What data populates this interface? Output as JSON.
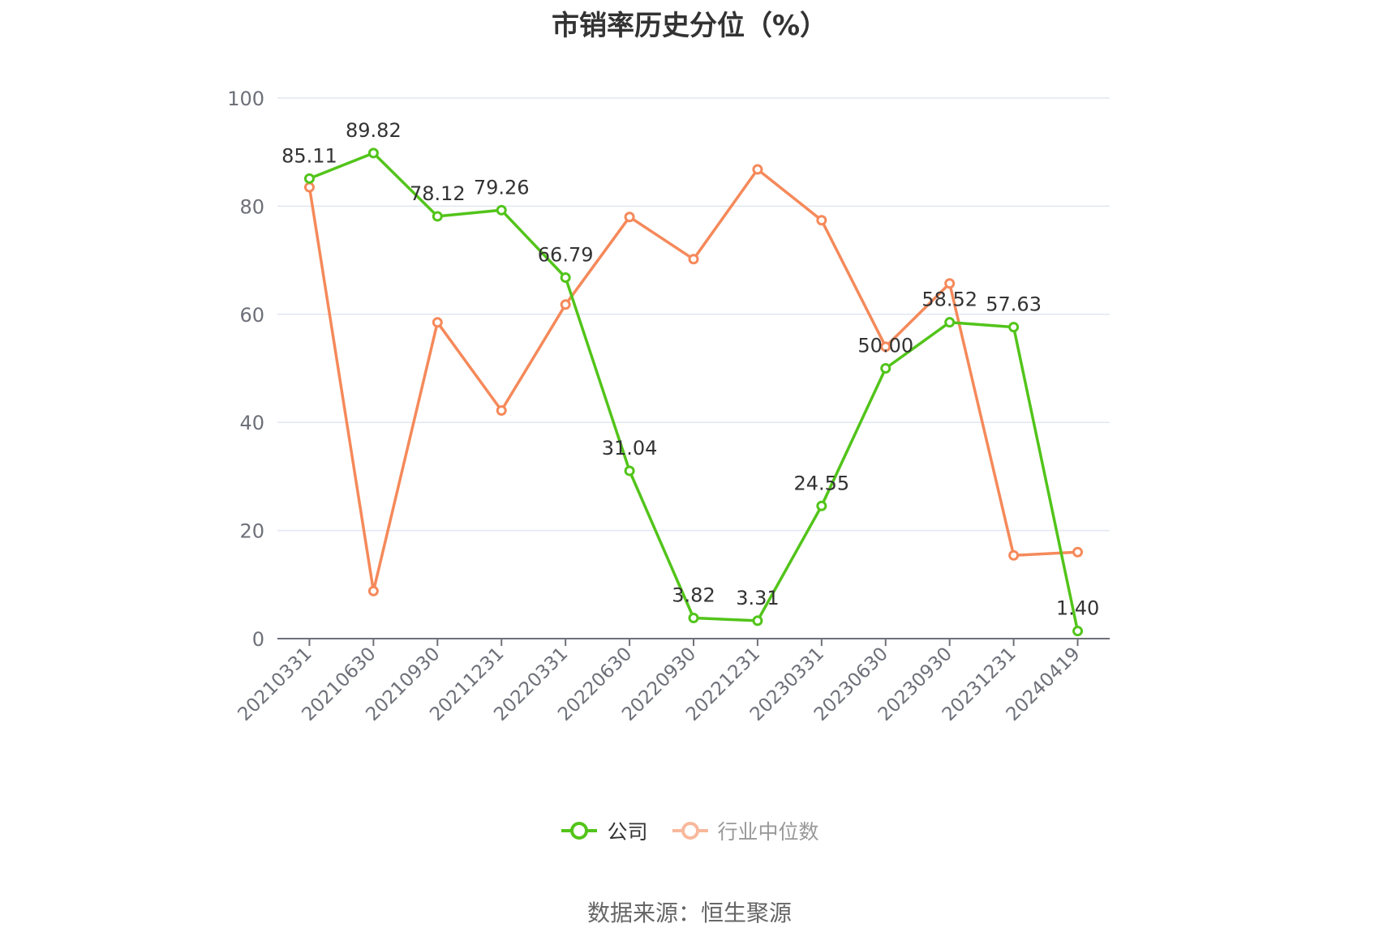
{
  "title": "市销率历史分位（%）",
  "source": "数据来源：恒生聚源",
  "chart_data": {
    "type": "line",
    "categories": [
      "20210331",
      "20210630",
      "20210930",
      "20211231",
      "20220331",
      "20220630",
      "20220930",
      "20221231",
      "20230331",
      "20230630",
      "20230930",
      "20231231",
      "20240419"
    ],
    "ylim": [
      0,
      100
    ],
    "yticks": [
      0,
      20,
      40,
      60,
      80,
      100
    ],
    "grid": true,
    "legend_position": "bottom",
    "series": [
      {
        "name": "公司",
        "color": "#52c41a",
        "values": [
          85.11,
          89.82,
          78.12,
          79.26,
          66.79,
          31.04,
          3.82,
          3.31,
          24.55,
          50.0,
          58.52,
          57.63,
          1.4
        ],
        "labels": [
          "85.11",
          "89.82",
          "78.12",
          "79.26",
          "66.79",
          "31.04",
          "3.82",
          "3.31",
          "24.55",
          "50.00",
          "58.52",
          "57.63",
          "1.40"
        ]
      },
      {
        "name": "行业中位数",
        "color": "#f5895a",
        "values": [
          83.5,
          8.8,
          58.5,
          42.2,
          61.8,
          78.0,
          70.2,
          86.8,
          77.4,
          54.0,
          65.7,
          15.4,
          16.0
        ]
      }
    ]
  }
}
